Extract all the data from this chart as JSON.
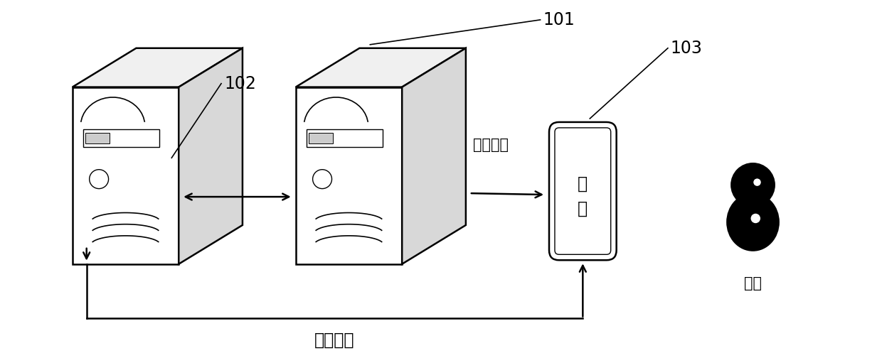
{
  "bg_color": "#ffffff",
  "label_101": "101",
  "label_102": "102",
  "label_103": "103",
  "text_toufa": "投放广告",
  "text_guanggao_line1": "广",
  "text_guanggao_line2": "告",
  "text_guanggaoliangjie": "广告链接",
  "text_yonghu": "用户",
  "lw": 1.8
}
